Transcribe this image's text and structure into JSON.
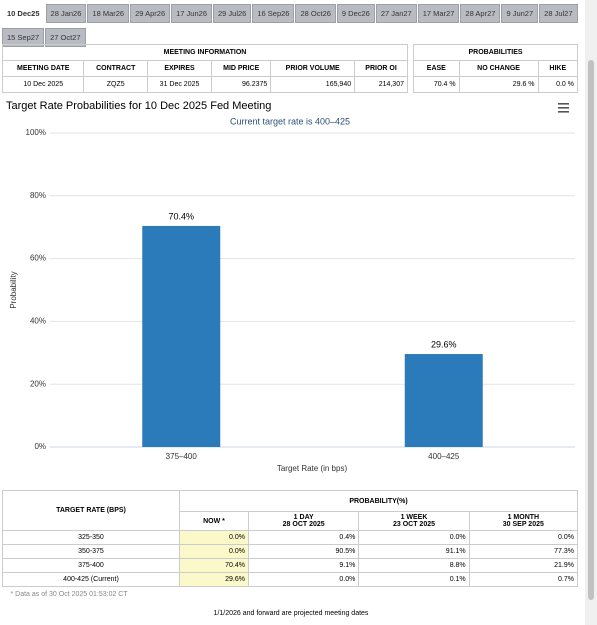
{
  "tabs": [
    "10 Dec25",
    "28 Jan26",
    "18 Mar26",
    "29 Apr26",
    "17 Jun26",
    "29 Jul26",
    "16 Sep26",
    "28 Oct26",
    "9 Dec26",
    "27 Jan27",
    "17 Mar27",
    "28 Apr27",
    "9 Jun27",
    "28 Jul27",
    "15 Sep27",
    "27 Oct27"
  ],
  "meeting_info": {
    "title": "MEETING INFORMATION",
    "headers": [
      "MEETING DATE",
      "CONTRACT",
      "EXPIRES",
      "MID PRICE",
      "PRIOR VOLUME",
      "PRIOR OI"
    ],
    "row": [
      "10 Dec 2025",
      "ZQZ5",
      "31 Dec 2025",
      "96.2375",
      "165,940",
      "214,307"
    ]
  },
  "probabilities": {
    "title": "PROBABILITIES",
    "headers": [
      "EASE",
      "NO CHANGE",
      "HIKE"
    ],
    "row": [
      "70.4 %",
      "29.6 %",
      "0.0 %"
    ]
  },
  "chart_data": {
    "type": "bar",
    "title": "Target Rate Probabilities for 10 Dec 2025 Fed Meeting",
    "subtitle": "Current target rate is 400–425",
    "categories": [
      "375–400",
      "400–425"
    ],
    "values": [
      70.4,
      29.6
    ],
    "value_labels": [
      "70.4%",
      "29.6%"
    ],
    "color": "#2b7bba",
    "ylim": [
      0,
      100
    ],
    "yticks": [
      {
        "value": 0,
        "label": "0%"
      },
      {
        "value": 20,
        "label": "20%"
      },
      {
        "value": 40,
        "label": "40%"
      },
      {
        "value": 60,
        "label": "60%"
      },
      {
        "value": 80,
        "label": "80%"
      },
      {
        "value": 100,
        "label": "100%"
      }
    ],
    "y_label": "Probability",
    "x_label": "Target Rate (in bps)",
    "grid": true
  },
  "rate_table": {
    "first_header": "TARGET RATE (BPS)",
    "group_header": "PROBABILITY(%)",
    "columns": [
      {
        "label": "NOW *"
      },
      {
        "label": "1 DAY",
        "date": "28 OCT 2025"
      },
      {
        "label": "1 WEEK",
        "date": "23 OCT 2025"
      },
      {
        "label": "1 MONTH",
        "date": "30 SEP 2025"
      }
    ],
    "rows": [
      [
        "325-350",
        "0.0%",
        "0.4%",
        "0.0%",
        "0.0%"
      ],
      [
        "350-375",
        "0.0%",
        "90.5%",
        "91.1%",
        "77.3%"
      ],
      [
        "375-400",
        "70.4%",
        "9.1%",
        "8.8%",
        "21.9%"
      ],
      [
        "400-425 (Current)",
        "29.6%",
        "0.0%",
        "0.1%",
        "0.7%"
      ]
    ],
    "note": "* Data as of 30 Oct 2025 01:53:02 CT"
  },
  "footer": "1/1/2026 and forward are projected meeting dates"
}
